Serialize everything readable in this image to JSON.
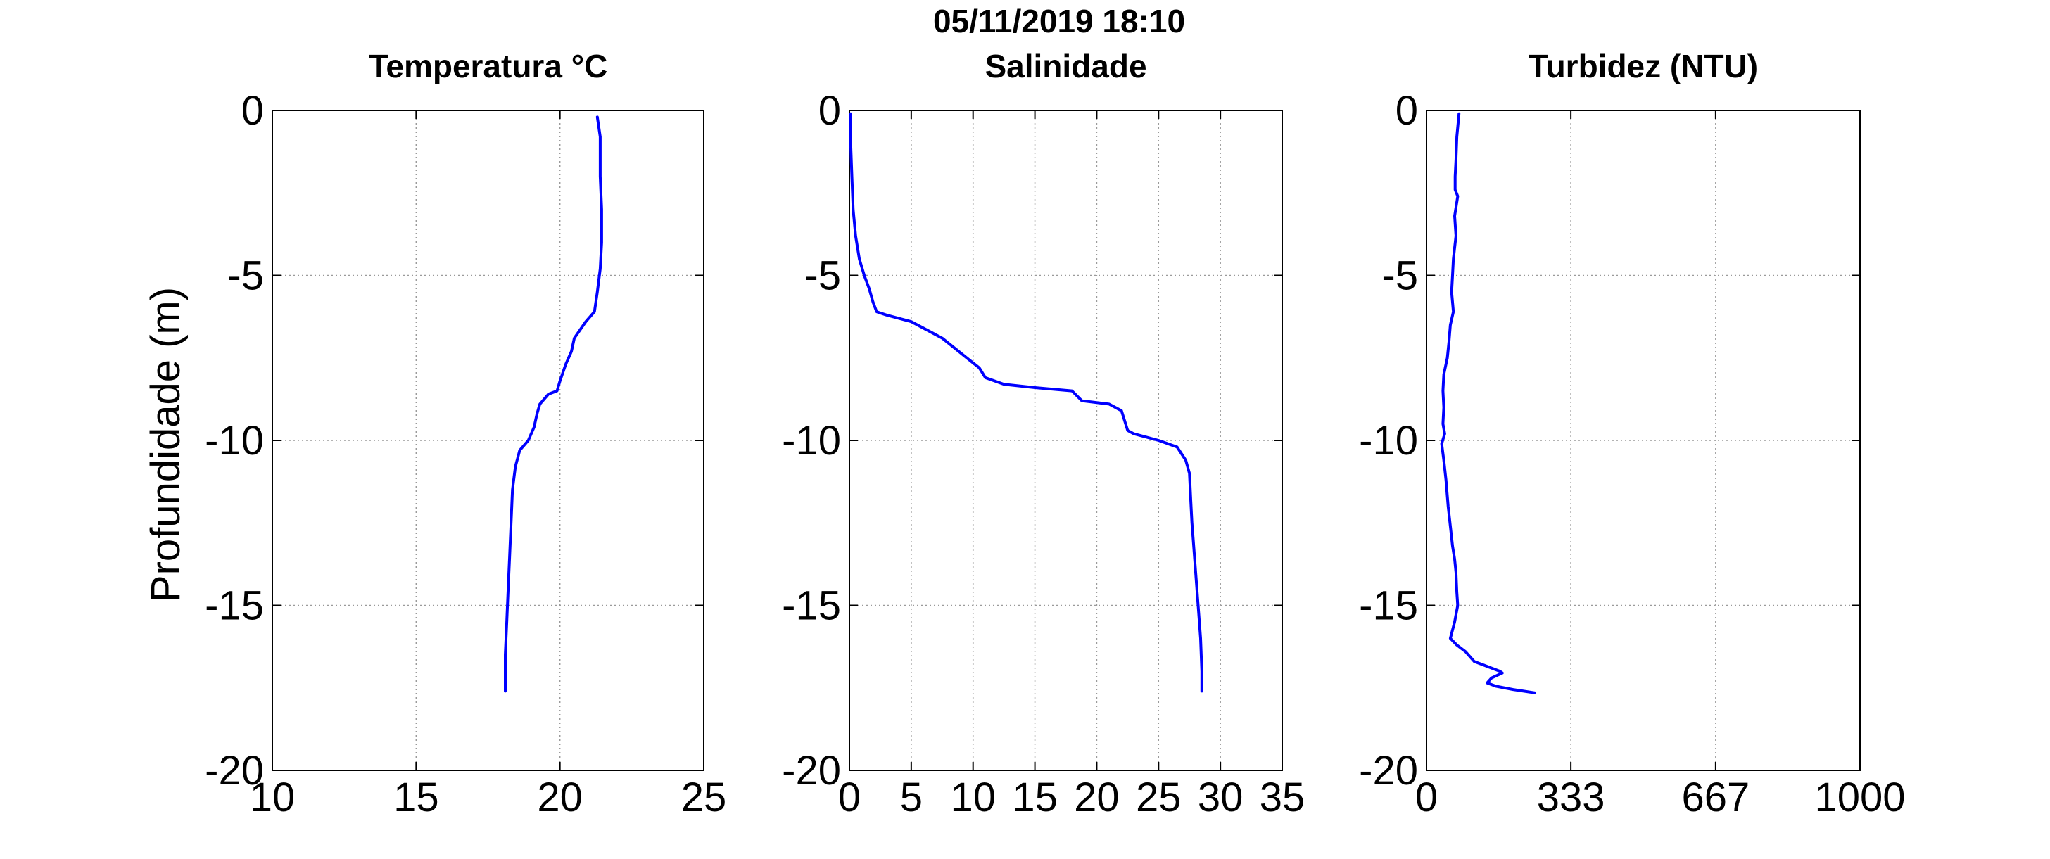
{
  "figure": {
    "suptitle": "05/11/2019 18:10",
    "ylabel": "Profundidade (m)"
  },
  "chart_data": [
    {
      "type": "line",
      "title": "Temperatura °C",
      "xlabel": "",
      "ylabel": "Profundidade (m)",
      "xlim": [
        10,
        25
      ],
      "ylim": [
        -20,
        0
      ],
      "xticks": [
        10,
        15,
        20,
        25
      ],
      "xtick_labels": [
        "10",
        "15",
        "20",
        "25"
      ],
      "yticks": [
        0,
        -5,
        -10,
        -15,
        -20
      ],
      "ytick_labels": [
        "0",
        "-5",
        "-10",
        "-15",
        "-20"
      ],
      "grid": true,
      "line_color": "#0000ff",
      "series": [
        {
          "x": [
            21.3,
            21.4,
            21.4,
            21.45,
            21.45,
            21.4,
            21.3,
            21.2,
            20.9,
            20.5,
            20.4,
            20.2,
            20.0,
            19.9,
            19.6,
            19.3,
            19.2,
            19.1,
            18.9,
            18.6,
            18.45,
            18.35,
            18.3,
            18.25,
            18.2,
            18.15,
            18.1,
            18.1
          ],
          "y": [
            -0.2,
            -0.8,
            -2.0,
            -3.0,
            -4.0,
            -4.8,
            -5.5,
            -6.1,
            -6.4,
            -6.9,
            -7.3,
            -7.7,
            -8.2,
            -8.5,
            -8.6,
            -8.9,
            -9.2,
            -9.6,
            -10.0,
            -10.3,
            -10.8,
            -11.5,
            -12.5,
            -13.5,
            -14.5,
            -15.5,
            -16.5,
            -17.6
          ]
        }
      ]
    },
    {
      "type": "line",
      "title": "Salinidade",
      "xlabel": "",
      "ylabel": "",
      "xlim": [
        0,
        35
      ],
      "ylim": [
        -20,
        0
      ],
      "xticks": [
        0,
        5,
        10,
        15,
        20,
        25,
        30,
        35
      ],
      "xtick_labels": [
        "0",
        "5",
        "10",
        "15",
        "20",
        "25",
        "30",
        "35"
      ],
      "yticks": [
        0,
        -5,
        -10,
        -15,
        -20
      ],
      "ytick_labels": [
        "0",
        "-5",
        "-10",
        "-15",
        "-20"
      ],
      "grid": true,
      "line_color": "#0000ff",
      "series": [
        {
          "x": [
            0.1,
            0.1,
            0.2,
            0.3,
            0.5,
            0.8,
            1.2,
            1.6,
            1.9,
            2.2,
            3.0,
            5.0,
            6.5,
            7.5,
            8.5,
            9.5,
            10.5,
            11.0,
            12.5,
            15.0,
            18.0,
            18.8,
            21.0,
            22.0,
            22.5,
            23.0,
            25.0,
            26.5,
            27.2,
            27.5,
            27.6,
            27.7,
            27.8,
            28.0,
            28.2,
            28.4,
            28.5,
            28.5
          ],
          "y": [
            -0.1,
            -1.0,
            -2.0,
            -3.0,
            -3.8,
            -4.5,
            -5.0,
            -5.4,
            -5.8,
            -6.1,
            -6.2,
            -6.4,
            -6.7,
            -6.9,
            -7.2,
            -7.5,
            -7.8,
            -8.1,
            -8.3,
            -8.4,
            -8.5,
            -8.8,
            -8.9,
            -9.1,
            -9.7,
            -9.8,
            -10.0,
            -10.2,
            -10.6,
            -11.0,
            -11.8,
            -12.5,
            -13.0,
            -14.0,
            -15.0,
            -16.0,
            -17.0,
            -17.6
          ]
        }
      ]
    },
    {
      "type": "line",
      "title": "Turbidez (NTU)",
      "xlabel": "",
      "ylabel": "",
      "xlim": [
        0,
        1000
      ],
      "ylim": [
        -20,
        0
      ],
      "xticks": [
        0,
        333,
        667,
        1000
      ],
      "xtick_labels": [
        "0",
        "333",
        "667",
        "1000"
      ],
      "yticks": [
        0,
        -5,
        -10,
        -15,
        -20
      ],
      "ytick_labels": [
        "0",
        "-5",
        "-10",
        "-15",
        "-20"
      ],
      "grid": true,
      "line_color": "#0000ff",
      "series": [
        {
          "x": [
            75,
            70,
            68,
            66,
            66,
            72,
            65,
            68,
            62,
            60,
            58,
            62,
            55,
            52,
            48,
            40,
            38,
            40,
            38,
            42,
            35,
            40,
            45,
            50,
            55,
            60,
            65,
            68,
            70,
            72,
            65,
            55,
            70,
            90,
            110,
            130,
            150,
            170,
            175,
            150,
            140,
            160,
            200,
            250
          ],
          "y": [
            -0.1,
            -0.8,
            -1.5,
            -2.0,
            -2.4,
            -2.6,
            -3.2,
            -3.8,
            -4.5,
            -5.0,
            -5.5,
            -6.1,
            -6.5,
            -7.0,
            -7.5,
            -8.0,
            -8.5,
            -9.0,
            -9.5,
            -9.8,
            -10.1,
            -10.6,
            -11.2,
            -12.0,
            -12.6,
            -13.2,
            -13.6,
            -14.0,
            -14.6,
            -15.0,
            -15.5,
            -16.0,
            -16.2,
            -16.4,
            -16.7,
            -16.8,
            -16.9,
            -17.0,
            -17.05,
            -17.2,
            -17.35,
            -17.45,
            -17.55,
            -17.65
          ]
        }
      ]
    }
  ]
}
